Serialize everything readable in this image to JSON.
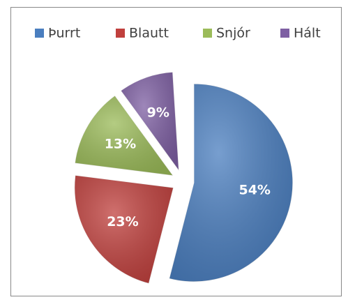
{
  "chart_data": {
    "type": "pie",
    "categories": [
      "Þurrt",
      "Blautt",
      "Snjór",
      "Hált"
    ],
    "values": [
      54,
      23,
      13,
      9
    ],
    "value_labels": [
      "54%",
      "23%",
      "13%",
      "9%"
    ],
    "colors": [
      "#4a7ebf",
      "#c0403d",
      "#9bbb59",
      "#7e5fa3"
    ],
    "legend": "top"
  }
}
